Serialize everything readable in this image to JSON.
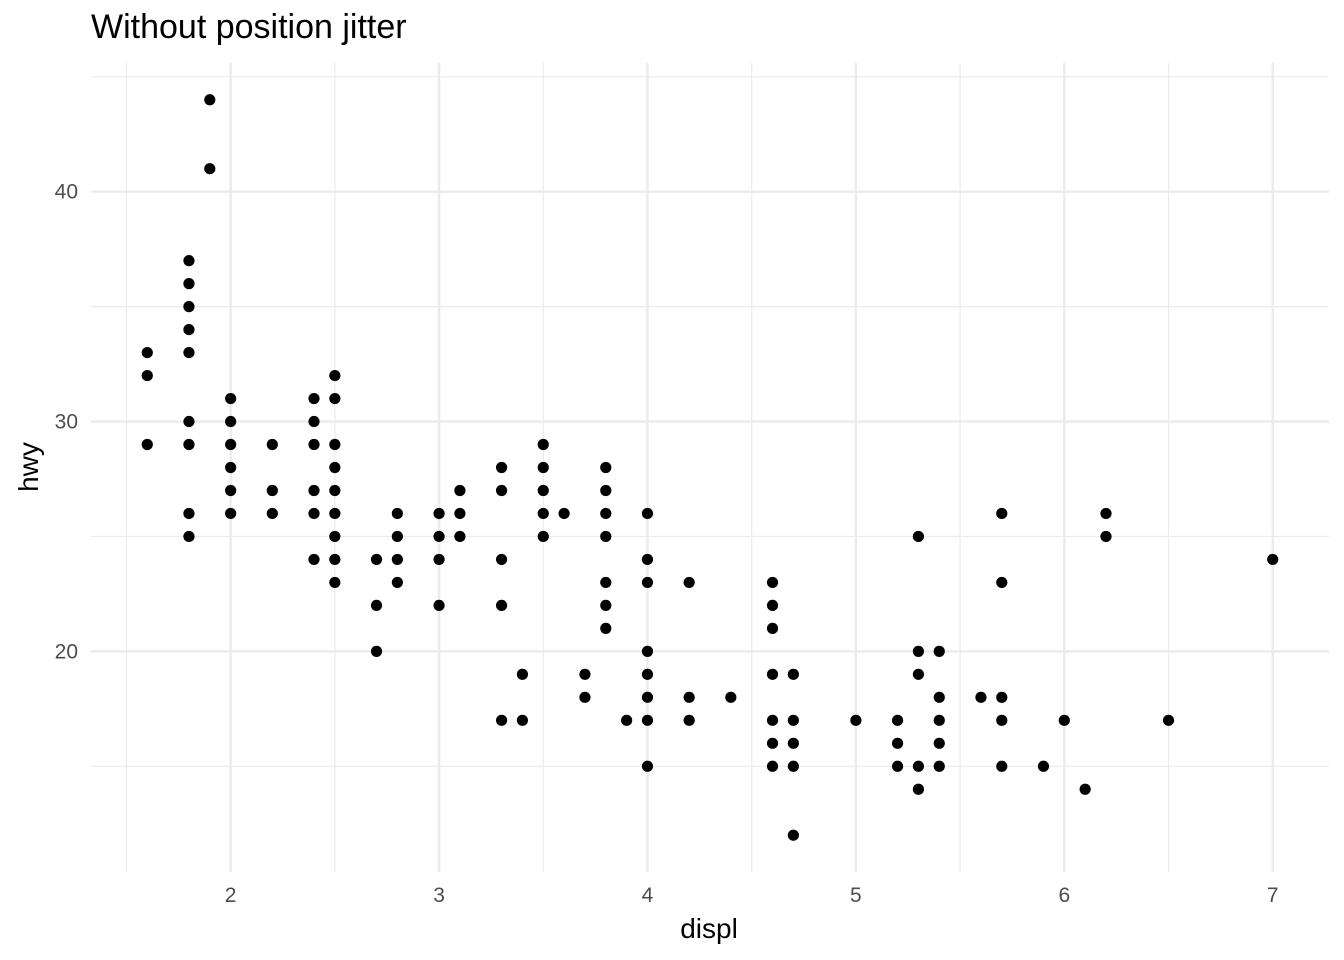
{
  "chart_data": {
    "type": "scatter",
    "title": "Without position jitter",
    "xlabel": "displ",
    "ylabel": "hwy",
    "xlim": [
      1.33,
      7.27
    ],
    "ylim": [
      10.4,
      45.6
    ],
    "xticks": [
      2,
      3,
      4,
      5,
      6,
      7
    ],
    "yticks": [
      20,
      30,
      40
    ],
    "grid": true,
    "point_color": "#000000",
    "points": [
      [
        1.6,
        33
      ],
      [
        1.6,
        32
      ],
      [
        1.6,
        29
      ],
      [
        1.8,
        37
      ],
      [
        1.8,
        36
      ],
      [
        1.8,
        35
      ],
      [
        1.8,
        34
      ],
      [
        1.8,
        33
      ],
      [
        1.8,
        30
      ],
      [
        1.8,
        29
      ],
      [
        1.8,
        26
      ],
      [
        1.8,
        25
      ],
      [
        1.9,
        44
      ],
      [
        1.9,
        41
      ],
      [
        2.0,
        31
      ],
      [
        2.0,
        30
      ],
      [
        2.0,
        29
      ],
      [
        2.0,
        28
      ],
      [
        2.0,
        27
      ],
      [
        2.0,
        26
      ],
      [
        2.2,
        29
      ],
      [
        2.2,
        27
      ],
      [
        2.2,
        26
      ],
      [
        2.4,
        31
      ],
      [
        2.4,
        30
      ],
      [
        2.4,
        29
      ],
      [
        2.4,
        27
      ],
      [
        2.4,
        26
      ],
      [
        2.4,
        24
      ],
      [
        2.5,
        32
      ],
      [
        2.5,
        31
      ],
      [
        2.5,
        29
      ],
      [
        2.5,
        28
      ],
      [
        2.5,
        27
      ],
      [
        2.5,
        26
      ],
      [
        2.5,
        25
      ],
      [
        2.5,
        24
      ],
      [
        2.5,
        23
      ],
      [
        2.7,
        24
      ],
      [
        2.7,
        22
      ],
      [
        2.7,
        20
      ],
      [
        2.8,
        26
      ],
      [
        2.8,
        25
      ],
      [
        2.8,
        24
      ],
      [
        2.8,
        23
      ],
      [
        3.0,
        26
      ],
      [
        3.0,
        25
      ],
      [
        3.0,
        24
      ],
      [
        3.0,
        22
      ],
      [
        3.1,
        27
      ],
      [
        3.1,
        26
      ],
      [
        3.1,
        25
      ],
      [
        3.3,
        28
      ],
      [
        3.3,
        27
      ],
      [
        3.3,
        24
      ],
      [
        3.3,
        22
      ],
      [
        3.3,
        17
      ],
      [
        3.4,
        19
      ],
      [
        3.4,
        17
      ],
      [
        3.5,
        29
      ],
      [
        3.5,
        28
      ],
      [
        3.5,
        27
      ],
      [
        3.5,
        26
      ],
      [
        3.5,
        25
      ],
      [
        3.6,
        26
      ],
      [
        3.7,
        19
      ],
      [
        3.7,
        18
      ],
      [
        3.8,
        28
      ],
      [
        3.8,
        27
      ],
      [
        3.8,
        26
      ],
      [
        3.8,
        25
      ],
      [
        3.8,
        23
      ],
      [
        3.8,
        22
      ],
      [
        3.8,
        21
      ],
      [
        3.9,
        17
      ],
      [
        4.0,
        26
      ],
      [
        4.0,
        24
      ],
      [
        4.0,
        23
      ],
      [
        4.0,
        20
      ],
      [
        4.0,
        19
      ],
      [
        4.0,
        18
      ],
      [
        4.0,
        17
      ],
      [
        4.0,
        15
      ],
      [
        4.2,
        23
      ],
      [
        4.2,
        18
      ],
      [
        4.2,
        17
      ],
      [
        4.4,
        18
      ],
      [
        4.6,
        23
      ],
      [
        4.6,
        22
      ],
      [
        4.6,
        21
      ],
      [
        4.6,
        19
      ],
      [
        4.6,
        17
      ],
      [
        4.6,
        16
      ],
      [
        4.6,
        15
      ],
      [
        4.7,
        19
      ],
      [
        4.7,
        17
      ],
      [
        4.7,
        16
      ],
      [
        4.7,
        15
      ],
      [
        4.7,
        12
      ],
      [
        5.0,
        17
      ],
      [
        5.2,
        17
      ],
      [
        5.2,
        16
      ],
      [
        5.2,
        15
      ],
      [
        5.3,
        25
      ],
      [
        5.3,
        20
      ],
      [
        5.3,
        19
      ],
      [
        5.3,
        15
      ],
      [
        5.3,
        14
      ],
      [
        5.4,
        20
      ],
      [
        5.4,
        18
      ],
      [
        5.4,
        17
      ],
      [
        5.4,
        16
      ],
      [
        5.4,
        15
      ],
      [
        5.6,
        18
      ],
      [
        5.7,
        26
      ],
      [
        5.7,
        23
      ],
      [
        5.7,
        18
      ],
      [
        5.7,
        17
      ],
      [
        5.7,
        15
      ],
      [
        5.9,
        15
      ],
      [
        6.0,
        17
      ],
      [
        6.1,
        14
      ],
      [
        6.2,
        26
      ],
      [
        6.2,
        25
      ],
      [
        6.5,
        17
      ],
      [
        7.0,
        24
      ]
    ]
  }
}
